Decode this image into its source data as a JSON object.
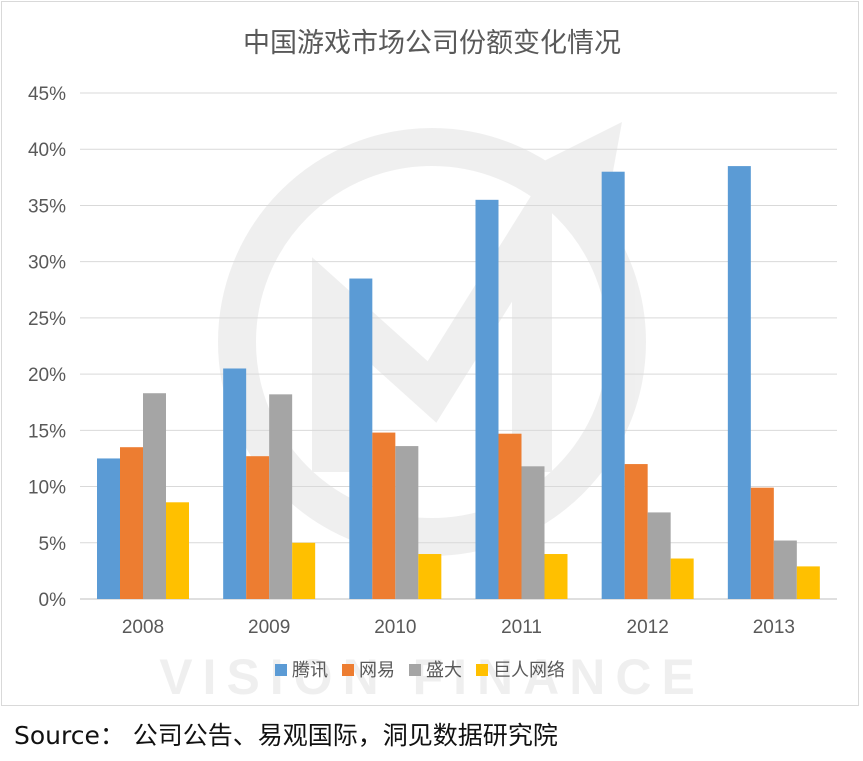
{
  "chart_data": {
    "type": "bar",
    "title": "中国游戏市场公司份额变化情况",
    "categories": [
      "2008",
      "2009",
      "2010",
      "2011",
      "2012",
      "2013"
    ],
    "series": [
      {
        "name": "腾讯",
        "color": "#5b9bd5",
        "values": [
          12.5,
          20.5,
          28.5,
          35.5,
          38.0,
          38.5
        ]
      },
      {
        "name": "网易",
        "color": "#ed7d31",
        "values": [
          13.5,
          12.7,
          14.8,
          14.7,
          12.0,
          9.9
        ]
      },
      {
        "name": "盛大",
        "color": "#a5a5a5",
        "values": [
          18.3,
          18.2,
          13.6,
          11.8,
          7.7,
          5.2
        ]
      },
      {
        "name": "巨人网络",
        "color": "#ffc000",
        "values": [
          8.6,
          5.0,
          4.0,
          4.0,
          3.6,
          2.9
        ]
      }
    ],
    "y_ticks": [
      "0%",
      "5%",
      "10%",
      "15%",
      "20%",
      "25%",
      "30%",
      "35%",
      "40%",
      "45%"
    ],
    "ylim": [
      0,
      45
    ],
    "y_unit": "%",
    "grid": true,
    "legend_position": "bottom"
  },
  "watermark": {
    "text": "VISION FINANCE"
  },
  "footer": {
    "source": "Source：  公司公告、易观国际，洞见数据研究院"
  }
}
